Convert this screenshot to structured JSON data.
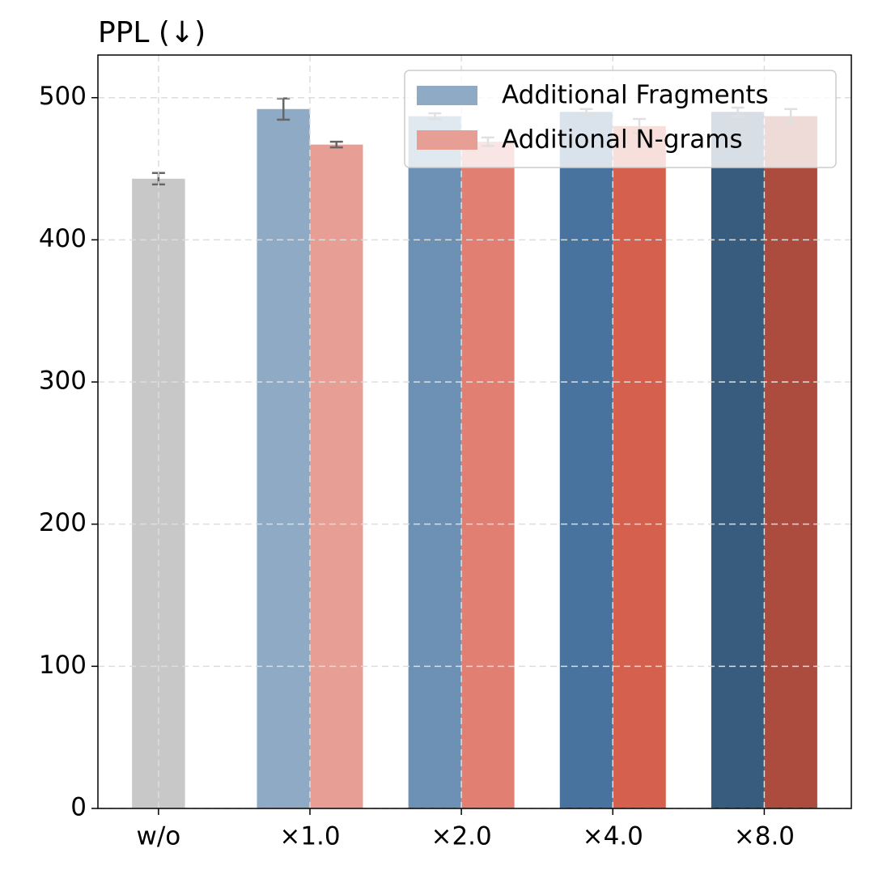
{
  "chart_data": {
    "type": "bar",
    "title": "PPL (↓)",
    "categories": [
      "w/o",
      "×1.0",
      "×2.0",
      "×4.0",
      "×8.0"
    ],
    "baseline": {
      "value": 443,
      "error": 4,
      "color": "#c8c8c8"
    },
    "series": [
      {
        "name": "Additional Fragments",
        "color": "#8eaac4",
        "colors": [
          null,
          "#8eaac4",
          "#6c91b4",
          "#48739f",
          "#385c7e"
        ],
        "values": [
          null,
          492,
          487,
          490,
          490
        ],
        "errors": [
          null,
          7.5,
          2,
          2,
          3
        ]
      },
      {
        "name": "Additional N-grams",
        "color": "#e79e94",
        "colors": [
          null,
          "#e79e94",
          "#e07f72",
          "#d6604e",
          "#ab4c3f"
        ],
        "values": [
          null,
          467,
          469,
          480,
          487
        ],
        "errors": [
          null,
          2,
          3,
          5,
          5
        ]
      }
    ],
    "ylim": [
      0,
      530
    ],
    "yticks": [
      0,
      100,
      200,
      300,
      400,
      500
    ],
    "grid": true,
    "legend": "upper right"
  }
}
